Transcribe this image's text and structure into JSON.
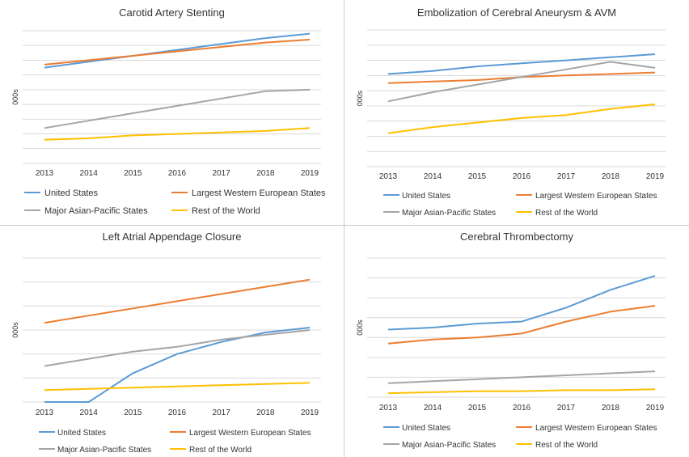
{
  "colors": {
    "United States": "#5B9BD5",
    "Largest Western European States": "#ED7D31",
    "Major Asian-Pacific States": "#A5A5A5",
    "Rest of the World": "#FFC000",
    "grid": "#d9d9d9",
    "text": "#333333"
  },
  "chart_data": [
    {
      "type": "line",
      "title": "Carotid Artery Stenting",
      "ylabel": "000s",
      "xlabel": "",
      "categories": [
        "2013",
        "2014",
        "2015",
        "2016",
        "2017",
        "2018",
        "2019"
      ],
      "gridlines": 9,
      "ylim": [
        0,
        9
      ],
      "grid": true,
      "legend_position": "bottom",
      "series": [
        {
          "name": "United States",
          "values": [
            6.5,
            6.9,
            7.3,
            7.7,
            8.1,
            8.5,
            8.8
          ]
        },
        {
          "name": "Largest Western European States",
          "values": [
            6.7,
            7.0,
            7.3,
            7.6,
            7.9,
            8.2,
            8.4
          ]
        },
        {
          "name": "Major Asian-Pacific States",
          "values": [
            2.4,
            2.9,
            3.4,
            3.9,
            4.4,
            4.9,
            5.0
          ]
        },
        {
          "name": "Rest of the World",
          "values": [
            1.6,
            1.7,
            1.9,
            2.0,
            2.1,
            2.2,
            2.4
          ]
        }
      ]
    },
    {
      "type": "line",
      "title": "Embolization of Cerebral Aneurysm & AVM",
      "ylabel": "000s",
      "xlabel": "",
      "categories": [
        "2013",
        "2014",
        "2015",
        "2016",
        "2017",
        "2018",
        "2019"
      ],
      "gridlines": 9,
      "ylim": [
        0,
        9
      ],
      "grid": true,
      "legend_position": "bottom",
      "series": [
        {
          "name": "United States",
          "values": [
            6.1,
            6.3,
            6.6,
            6.8,
            7.0,
            7.2,
            7.4
          ]
        },
        {
          "name": "Largest Western European States",
          "values": [
            5.5,
            5.6,
            5.7,
            5.9,
            6.0,
            6.1,
            6.2
          ]
        },
        {
          "name": "Major Asian-Pacific States",
          "values": [
            4.3,
            4.9,
            5.4,
            5.9,
            6.4,
            6.9,
            6.5
          ]
        },
        {
          "name": "Rest of the World",
          "values": [
            2.2,
            2.6,
            2.9,
            3.2,
            3.4,
            3.8,
            4.1
          ]
        }
      ]
    },
    {
      "type": "line",
      "title": "Left Atrial Appendage Closure",
      "ylabel": "000s",
      "xlabel": "",
      "categories": [
        "2013",
        "2014",
        "2015",
        "2016",
        "2017",
        "2018",
        "2019"
      ],
      "gridlines": 6,
      "ylim": [
        0,
        6
      ],
      "grid": true,
      "legend_position": "bottom",
      "series": [
        {
          "name": "United States",
          "values": [
            0.0,
            0.0,
            1.2,
            2.0,
            2.5,
            2.9,
            3.1
          ]
        },
        {
          "name": "Largest Western European States",
          "values": [
            3.3,
            3.6,
            3.9,
            4.2,
            4.5,
            4.8,
            5.1
          ]
        },
        {
          "name": "Major Asian-Pacific States",
          "values": [
            1.5,
            1.8,
            2.1,
            2.3,
            2.6,
            2.8,
            3.0
          ]
        },
        {
          "name": "Rest of the World",
          "values": [
            0.5,
            0.55,
            0.6,
            0.65,
            0.7,
            0.75,
            0.8
          ]
        }
      ]
    },
    {
      "type": "line",
      "title": "Cerebral Thrombectomy",
      "ylabel": "000s",
      "xlabel": "",
      "categories": [
        "2013",
        "2014",
        "2015",
        "2016",
        "2017",
        "2018",
        "2019"
      ],
      "gridlines": 7,
      "ylim": [
        0,
        7
      ],
      "grid": true,
      "legend_position": "bottom",
      "series": [
        {
          "name": "United States",
          "values": [
            3.4,
            3.5,
            3.7,
            3.8,
            4.5,
            5.4,
            6.1
          ]
        },
        {
          "name": "Largest Western European States",
          "values": [
            2.7,
            2.9,
            3.0,
            3.2,
            3.8,
            4.3,
            4.6
          ]
        },
        {
          "name": "Major Asian-Pacific States",
          "values": [
            0.7,
            0.8,
            0.9,
            1.0,
            1.1,
            1.2,
            1.3
          ]
        },
        {
          "name": "Rest of the World",
          "values": [
            0.2,
            0.25,
            0.3,
            0.3,
            0.35,
            0.35,
            0.4
          ]
        }
      ]
    }
  ]
}
